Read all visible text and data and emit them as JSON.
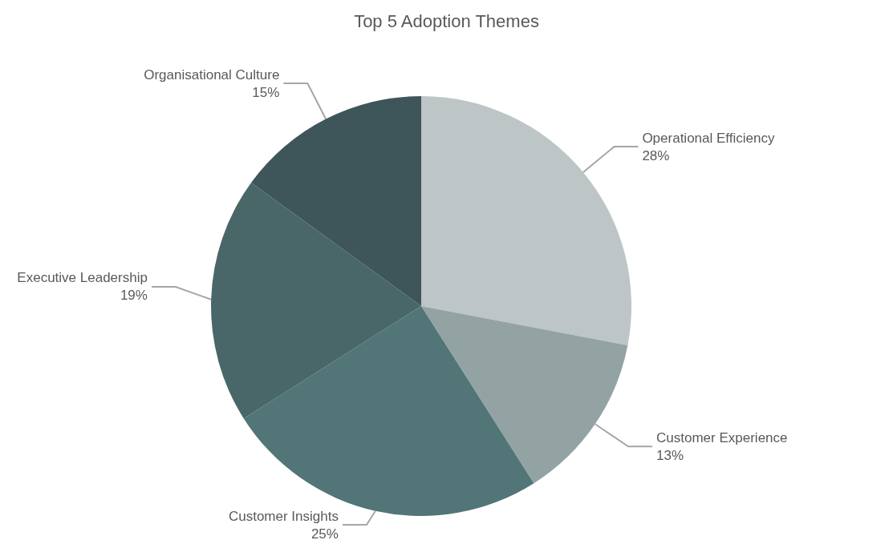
{
  "chart_data": {
    "type": "pie",
    "title": "Top 5 Adoption Themes",
    "categories": [
      "Operational Efficiency",
      "Customer Experience",
      "Customer Insights",
      "Executive Leadership",
      "Organisational Culture"
    ],
    "values": [
      28,
      13,
      25,
      19,
      15
    ],
    "colors": [
      "#bec5c6",
      "#93a3a4",
      "#527577",
      "#496769",
      "#3e5559"
    ],
    "value_labels": [
      "28%",
      "13%",
      "25%",
      "19%",
      "15%"
    ],
    "legend": false
  }
}
